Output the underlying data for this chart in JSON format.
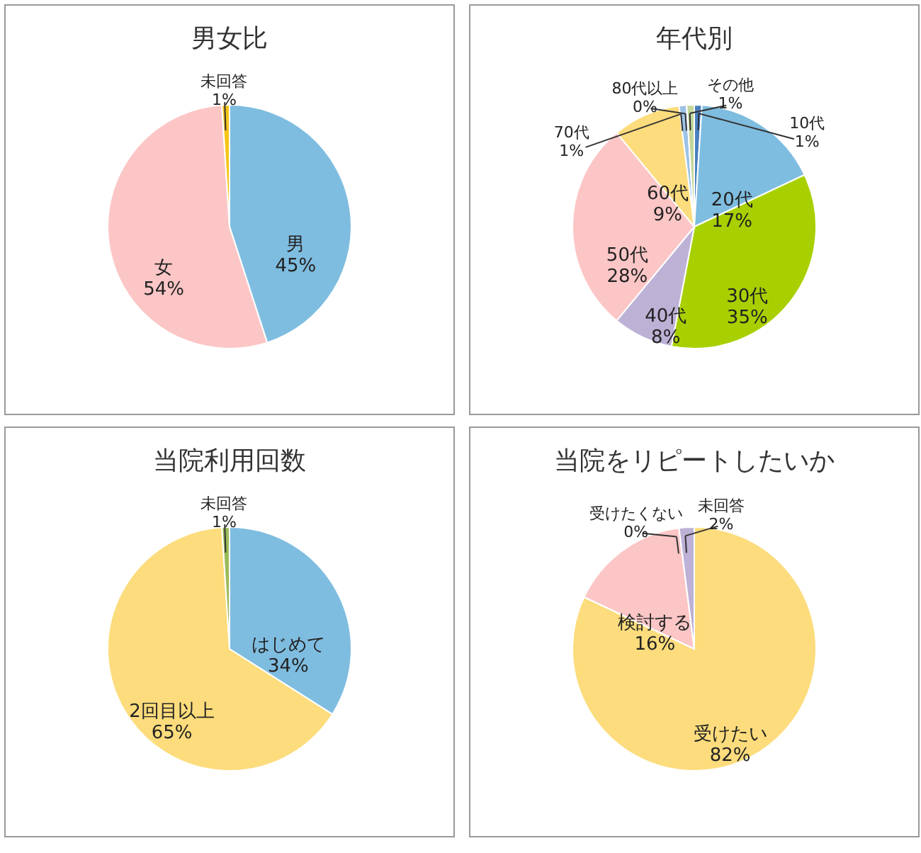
{
  "chart_data": [
    {
      "type": "pie",
      "title": "男女比",
      "categories": [
        "男",
        "女",
        "未回答"
      ],
      "values": [
        45,
        54,
        1
      ],
      "value_labels": [
        "45%",
        "54%",
        "1%"
      ],
      "colors": [
        "#7fbde0",
        "#fcc6c6",
        "#f5c518"
      ]
    },
    {
      "type": "pie",
      "title": "年代別",
      "categories": [
        "10代",
        "20代",
        "30代",
        "40代",
        "50代",
        "60代",
        "70代",
        "80代以上",
        "その他"
      ],
      "values": [
        1,
        17,
        35,
        8,
        28,
        9,
        1,
        0,
        1
      ],
      "value_labels": [
        "1%",
        "17%",
        "35%",
        "8%",
        "28%",
        "9%",
        "1%",
        "0%",
        "1%"
      ],
      "colors": [
        "#4a7fc0",
        "#7fbde0",
        "#a8d000",
        "#bdb1d6",
        "#fcc6c6",
        "#fcdc7c",
        "#9dc3e6",
        "#8fb4d9",
        "#c4d79b"
      ]
    },
    {
      "type": "pie",
      "title": "当院利用回数",
      "categories": [
        "はじめて",
        "2回目以上",
        "未回答"
      ],
      "values": [
        34,
        65,
        1
      ],
      "value_labels": [
        "34%",
        "65%",
        "1%"
      ],
      "colors": [
        "#7fbde0",
        "#fcdc7c",
        "#9bbb59"
      ]
    },
    {
      "type": "pie",
      "title": "当院をリピートしたいか",
      "categories": [
        "受けたい",
        "検討する",
        "受けたくない",
        "未回答"
      ],
      "values": [
        82,
        16,
        0,
        2
      ],
      "value_labels": [
        "82%",
        "16%",
        "0%",
        "2%"
      ],
      "colors": [
        "#fcdc7c",
        "#fcc6c6",
        "#c0504d",
        "#bdb1d6"
      ]
    }
  ]
}
